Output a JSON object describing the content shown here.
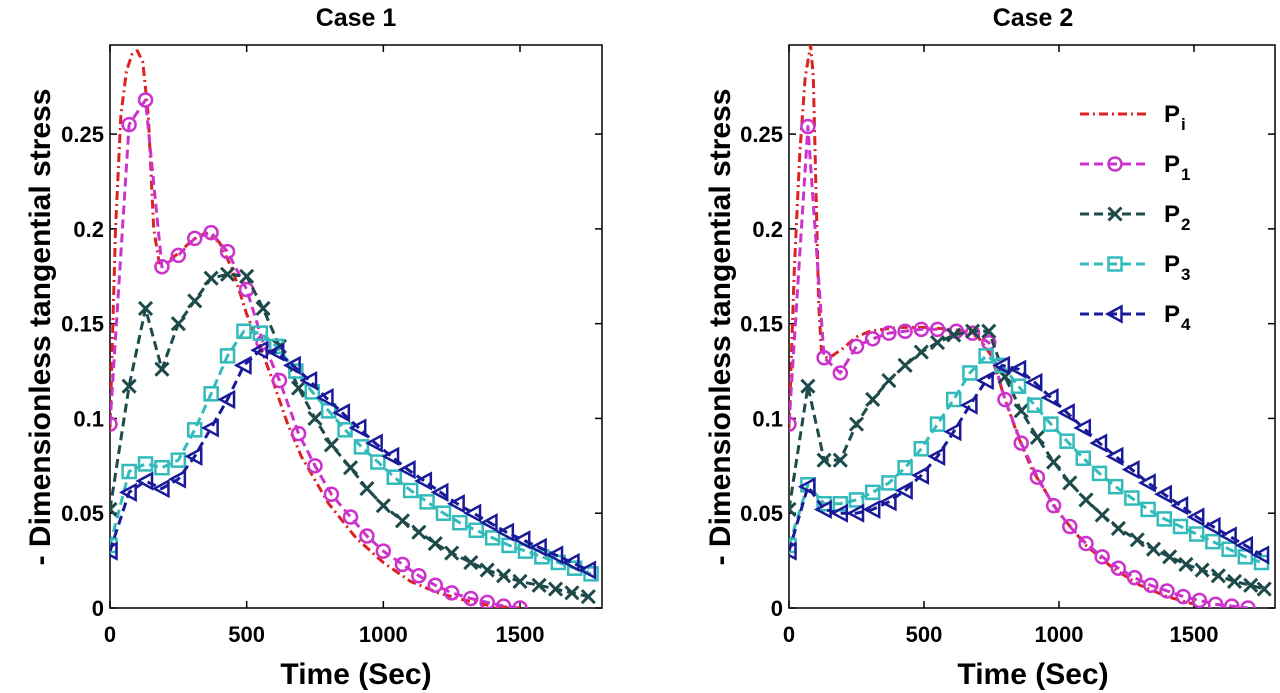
{
  "chart_data": [
    {
      "type": "line",
      "title": "Case 1",
      "xlabel": "Time (Sec)",
      "ylabel": "- Dimensionless tangential stress",
      "xlim": [
        0,
        1800
      ],
      "ylim": [
        0,
        0.297
      ],
      "xticks": [
        0,
        500,
        1000,
        1500
      ],
      "xtick_labels": [
        "0",
        "500",
        "1000",
        "1500"
      ],
      "yticks": [
        0,
        0.05,
        0.1,
        0.15,
        0.2,
        0.25
      ],
      "ytick_labels": [
        "0",
        "0.05",
        "0.1",
        "0.15",
        "0.2",
        "0.25"
      ],
      "grid": false,
      "series": [
        {
          "name": "P_i",
          "color": "#dd2222",
          "dash": "dashdot",
          "marker": "none",
          "x": [
            0,
            20,
            40,
            60,
            80,
            100,
            120,
            140,
            160,
            180,
            200,
            250,
            300,
            350,
            400,
            450,
            500,
            550,
            600,
            650,
            700,
            800,
            900,
            1000,
            1100,
            1200,
            1300,
            1400,
            1500
          ],
          "y": [
            0.095,
            0.2,
            0.26,
            0.283,
            0.292,
            0.294,
            0.288,
            0.26,
            0.2,
            0.182,
            0.182,
            0.187,
            0.194,
            0.198,
            0.193,
            0.178,
            0.155,
            0.138,
            0.118,
            0.097,
            0.08,
            0.055,
            0.037,
            0.024,
            0.014,
            0.008,
            0.004,
            0.001,
            0.0
          ]
        },
        {
          "name": "P_1",
          "color": "#cc33cc",
          "dash": "dash",
          "marker": "circle",
          "x": [
            0,
            70,
            130,
            190,
            250,
            310,
            370,
            430,
            500,
            560,
            620,
            690,
            750,
            810,
            880,
            940,
            1000,
            1070,
            1130,
            1190,
            1250,
            1320,
            1380,
            1440,
            1500
          ],
          "y": [
            0.097,
            0.255,
            0.268,
            0.18,
            0.186,
            0.195,
            0.198,
            0.188,
            0.168,
            0.14,
            0.12,
            0.092,
            0.075,
            0.06,
            0.048,
            0.038,
            0.03,
            0.023,
            0.017,
            0.012,
            0.008,
            0.005,
            0.003,
            0.001,
            0.0
          ]
        },
        {
          "name": "P_2",
          "color": "#1e4a4a",
          "dash": "dash",
          "marker": "x",
          "x": [
            0,
            70,
            130,
            190,
            250,
            310,
            370,
            430,
            500,
            560,
            620,
            690,
            750,
            810,
            880,
            940,
            1000,
            1070,
            1130,
            1190,
            1250,
            1320,
            1380,
            1440,
            1500,
            1570,
            1630,
            1690,
            1750
          ],
          "y": [
            0.052,
            0.117,
            0.158,
            0.126,
            0.15,
            0.162,
            0.174,
            0.176,
            0.175,
            0.158,
            0.138,
            0.116,
            0.1,
            0.086,
            0.074,
            0.063,
            0.054,
            0.046,
            0.04,
            0.034,
            0.029,
            0.024,
            0.02,
            0.017,
            0.014,
            0.012,
            0.01,
            0.008,
            0.006
          ]
        },
        {
          "name": "P_3",
          "color": "#33bbbb",
          "dash": "dash",
          "marker": "square",
          "x": [
            0,
            70,
            130,
            190,
            250,
            310,
            370,
            430,
            490,
            550,
            610,
            680,
            740,
            800,
            860,
            920,
            980,
            1040,
            1100,
            1160,
            1220,
            1280,
            1340,
            1400,
            1460,
            1520,
            1580,
            1640,
            1700,
            1760
          ],
          "y": [
            0.033,
            0.072,
            0.076,
            0.074,
            0.078,
            0.094,
            0.113,
            0.133,
            0.146,
            0.145,
            0.138,
            0.125,
            0.114,
            0.104,
            0.094,
            0.085,
            0.077,
            0.069,
            0.062,
            0.056,
            0.05,
            0.045,
            0.041,
            0.037,
            0.033,
            0.03,
            0.027,
            0.024,
            0.021,
            0.018
          ]
        },
        {
          "name": "P_4",
          "color": "#1a1a99",
          "dash": "dash",
          "marker": "triangle-left",
          "x": [
            0,
            70,
            130,
            190,
            250,
            310,
            370,
            430,
            490,
            550,
            610,
            670,
            730,
            790,
            850,
            910,
            970,
            1030,
            1090,
            1150,
            1210,
            1270,
            1330,
            1390,
            1450,
            1510,
            1570,
            1630,
            1690,
            1750
          ],
          "y": [
            0.03,
            0.061,
            0.067,
            0.063,
            0.068,
            0.08,
            0.095,
            0.11,
            0.128,
            0.136,
            0.135,
            0.128,
            0.12,
            0.111,
            0.103,
            0.095,
            0.087,
            0.08,
            0.073,
            0.067,
            0.061,
            0.055,
            0.05,
            0.045,
            0.04,
            0.036,
            0.032,
            0.028,
            0.024,
            0.02
          ]
        }
      ]
    },
    {
      "type": "line",
      "title": "Case 2",
      "xlabel": "Time (Sec)",
      "ylabel": "- Dimensionless tangential stress",
      "xlim": [
        0,
        1800
      ],
      "ylim": [
        0,
        0.297
      ],
      "xticks": [
        0,
        500,
        1000,
        1500
      ],
      "xtick_labels": [
        "0",
        "500",
        "1000",
        "1500"
      ],
      "yticks": [
        0,
        0.05,
        0.1,
        0.15,
        0.2,
        0.25
      ],
      "ytick_labels": [
        "0",
        "0.05",
        "0.1",
        "0.15",
        "0.2",
        "0.25"
      ],
      "grid": false,
      "legend": {
        "position": "top-right",
        "entries": [
          {
            "main": "P",
            "sub": "i"
          },
          {
            "main": "P",
            "sub": "1"
          },
          {
            "main": "P",
            "sub": "2"
          },
          {
            "main": "P",
            "sub": "3"
          },
          {
            "main": "P",
            "sub": "4"
          }
        ]
      },
      "series": [
        {
          "name": "P_i",
          "color": "#dd2222",
          "dash": "dashdot",
          "marker": "none",
          "x": [
            0,
            20,
            40,
            60,
            80,
            90,
            100,
            110,
            120,
            140,
            160,
            200,
            250,
            300,
            400,
            500,
            600,
            650,
            700,
            750,
            800,
            850,
            900,
            1000,
            1100,
            1200,
            1300,
            1400,
            1500
          ],
          "y": [
            0.095,
            0.18,
            0.24,
            0.28,
            0.297,
            0.28,
            0.22,
            0.16,
            0.136,
            0.132,
            0.133,
            0.137,
            0.143,
            0.146,
            0.148,
            0.148,
            0.147,
            0.146,
            0.143,
            0.133,
            0.11,
            0.09,
            0.073,
            0.05,
            0.033,
            0.021,
            0.012,
            0.006,
            0.002
          ]
        },
        {
          "name": "P_1",
          "color": "#cc33cc",
          "dash": "dash",
          "marker": "circle",
          "x": [
            0,
            70,
            130,
            190,
            250,
            310,
            370,
            430,
            490,
            550,
            620,
            680,
            740,
            800,
            860,
            920,
            980,
            1040,
            1100,
            1160,
            1220,
            1280,
            1340,
            1400,
            1460,
            1520,
            1580,
            1640,
            1700
          ],
          "y": [
            0.097,
            0.254,
            0.132,
            0.124,
            0.138,
            0.142,
            0.145,
            0.146,
            0.147,
            0.147,
            0.146,
            0.145,
            0.14,
            0.11,
            0.087,
            0.069,
            0.054,
            0.043,
            0.034,
            0.027,
            0.021,
            0.016,
            0.012,
            0.009,
            0.006,
            0.004,
            0.002,
            0.001,
            0.0
          ]
        },
        {
          "name": "P_2",
          "color": "#1e4a4a",
          "dash": "dash",
          "marker": "x",
          "x": [
            0,
            70,
            130,
            190,
            250,
            310,
            370,
            430,
            490,
            550,
            610,
            680,
            740,
            800,
            860,
            920,
            980,
            1040,
            1100,
            1160,
            1220,
            1290,
            1350,
            1410,
            1470,
            1530,
            1590,
            1650,
            1710,
            1760
          ],
          "y": [
            0.052,
            0.117,
            0.078,
            0.078,
            0.097,
            0.11,
            0.12,
            0.128,
            0.135,
            0.14,
            0.144,
            0.146,
            0.146,
            0.122,
            0.104,
            0.09,
            0.077,
            0.066,
            0.057,
            0.049,
            0.042,
            0.036,
            0.031,
            0.027,
            0.023,
            0.02,
            0.017,
            0.014,
            0.012,
            0.01
          ]
        },
        {
          "name": "P_3",
          "color": "#33bbbb",
          "dash": "dash",
          "marker": "square",
          "x": [
            0,
            70,
            130,
            190,
            250,
            310,
            370,
            430,
            490,
            550,
            610,
            670,
            730,
            790,
            850,
            910,
            970,
            1030,
            1090,
            1150,
            1210,
            1270,
            1330,
            1390,
            1450,
            1510,
            1570,
            1630,
            1690,
            1750
          ],
          "y": [
            0.033,
            0.065,
            0.055,
            0.055,
            0.057,
            0.061,
            0.066,
            0.074,
            0.084,
            0.097,
            0.11,
            0.124,
            0.133,
            0.128,
            0.117,
            0.107,
            0.097,
            0.088,
            0.079,
            0.071,
            0.064,
            0.058,
            0.052,
            0.047,
            0.043,
            0.039,
            0.035,
            0.031,
            0.027,
            0.024
          ]
        },
        {
          "name": "P_4",
          "color": "#1a1a99",
          "dash": "dash",
          "marker": "triangle-left",
          "x": [
            0,
            70,
            130,
            190,
            250,
            310,
            370,
            430,
            490,
            550,
            610,
            670,
            730,
            790,
            850,
            910,
            970,
            1030,
            1090,
            1150,
            1210,
            1270,
            1330,
            1390,
            1450,
            1510,
            1570,
            1630,
            1690,
            1750
          ],
          "y": [
            0.03,
            0.064,
            0.052,
            0.05,
            0.05,
            0.052,
            0.056,
            0.062,
            0.07,
            0.08,
            0.093,
            0.107,
            0.12,
            0.128,
            0.126,
            0.119,
            0.111,
            0.103,
            0.095,
            0.087,
            0.08,
            0.073,
            0.066,
            0.06,
            0.054,
            0.048,
            0.043,
            0.038,
            0.033,
            0.028
          ]
        }
      ]
    }
  ]
}
